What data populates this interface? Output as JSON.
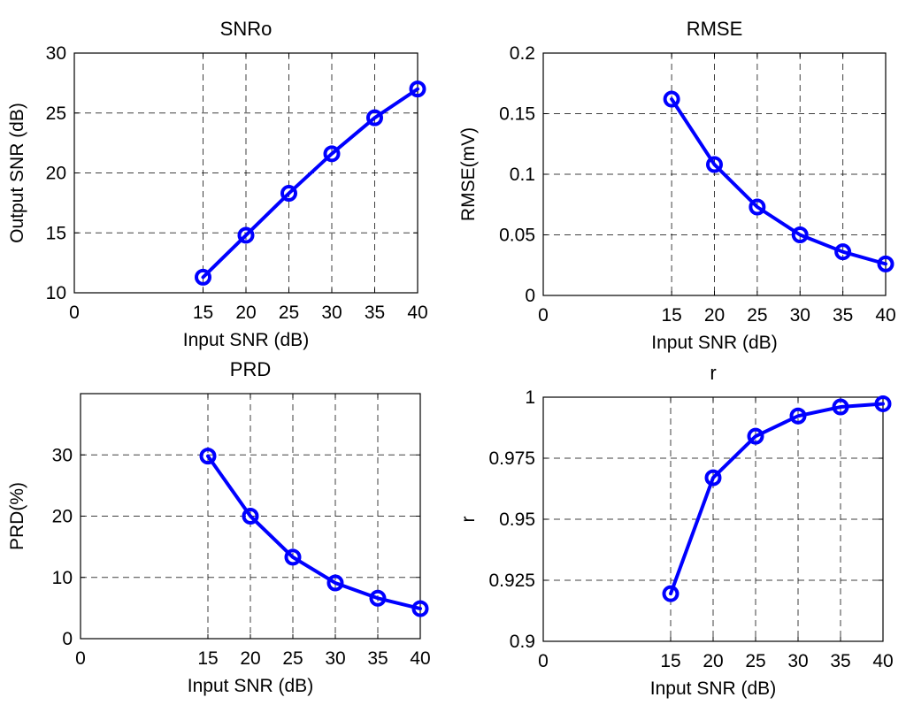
{
  "series_color": "#0000ff",
  "chart_data": [
    {
      "type": "line",
      "title": "SNRo",
      "xlabel": "Input SNR (dB)",
      "ylabel": "Output SNR (dB)",
      "xlim": [
        0,
        40
      ],
      "ylim": [
        10,
        30
      ],
      "xticks": [
        0,
        15,
        20,
        25,
        30,
        35,
        40
      ],
      "xtick_labels": [
        "0",
        "15",
        "20",
        "25",
        "30",
        "35",
        "40"
      ],
      "yticks": [
        10,
        15,
        20,
        25,
        30
      ],
      "ytick_labels": [
        "10",
        "15",
        "20",
        "25",
        "30"
      ],
      "grid": true,
      "marker": "circle",
      "x": [
        15,
        20,
        25,
        30,
        35,
        40
      ],
      "y": [
        11.3,
        14.8,
        18.3,
        21.6,
        24.6,
        27.0
      ]
    },
    {
      "type": "line",
      "title": "RMSE",
      "xlabel": "Input SNR (dB)",
      "ylabel": "RMSE(mV)",
      "xlim": [
        0,
        40
      ],
      "ylim": [
        0,
        0.2
      ],
      "xticks": [
        0,
        15,
        20,
        25,
        30,
        35,
        40
      ],
      "xtick_labels": [
        "0",
        "15",
        "20",
        "25",
        "30",
        "35",
        "40"
      ],
      "yticks": [
        0,
        0.05,
        0.1,
        0.15,
        0.2
      ],
      "ytick_labels": [
        "0",
        "0.05",
        "0.1",
        "0.15",
        "0.2"
      ],
      "grid": true,
      "marker": "circle",
      "x": [
        15,
        20,
        25,
        30,
        35,
        40
      ],
      "y": [
        0.162,
        0.108,
        0.073,
        0.05,
        0.036,
        0.026
      ]
    },
    {
      "type": "line",
      "title": "PRD",
      "xlabel": "Input SNR (dB)",
      "ylabel": "PRD(%)",
      "xlim": [
        0,
        40
      ],
      "ylim": [
        0,
        40
      ],
      "xticks": [
        0,
        15,
        20,
        25,
        30,
        35,
        40
      ],
      "xtick_labels": [
        "0",
        "15",
        "20",
        "25",
        "30",
        "35",
        "40"
      ],
      "yticks": [
        0,
        10,
        20,
        30
      ],
      "ytick_labels": [
        "0",
        "10",
        "20",
        "30"
      ],
      "grid": true,
      "marker": "circle",
      "x": [
        15,
        20,
        25,
        30,
        35,
        40
      ],
      "y": [
        29.8,
        20.0,
        13.3,
        9.1,
        6.6,
        4.9
      ]
    },
    {
      "type": "line",
      "title": "r",
      "xlabel": "Input SNR (dB)",
      "ylabel": "r",
      "xlim": [
        0,
        40
      ],
      "ylim": [
        0.9,
        1.0
      ],
      "xticks": [
        0,
        15,
        20,
        25,
        30,
        35,
        40
      ],
      "xtick_labels": [
        "0",
        "15",
        "20",
        "25",
        "30",
        "35",
        "40"
      ],
      "yticks": [
        0.9,
        0.925,
        0.95,
        0.975,
        1.0
      ],
      "ytick_labels": [
        "0.9",
        "0.925",
        "0.95",
        "0.975",
        "1"
      ],
      "grid": true,
      "marker": "circle",
      "x": [
        15,
        20,
        25,
        30,
        35,
        40
      ],
      "y": [
        0.9195,
        0.967,
        0.984,
        0.9923,
        0.996,
        0.9973
      ]
    }
  ]
}
